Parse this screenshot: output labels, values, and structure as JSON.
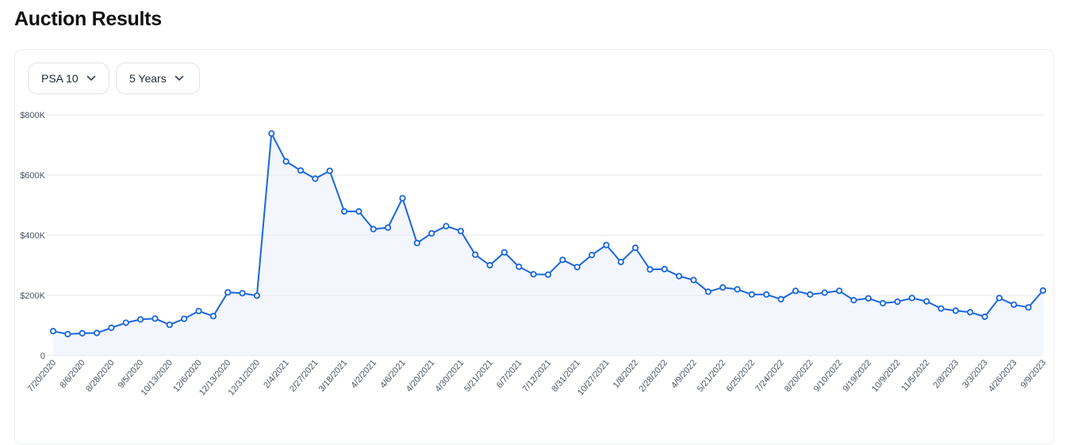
{
  "page": {
    "title": "Auction Results"
  },
  "filters": {
    "grade": {
      "label": "PSA 10",
      "icon": "chevron-down-icon"
    },
    "period": {
      "label": "5 Years",
      "icon": "chevron-down-icon"
    }
  },
  "colors": {
    "line": "#1a66e0",
    "area": "#e9effc",
    "grid": "#e5e7eb",
    "tick": "#4b5563"
  },
  "chart_data": {
    "type": "line",
    "title": "",
    "xlabel": "",
    "ylabel": "",
    "ylim": [
      0,
      800000
    ],
    "y_ticks": [
      0,
      200000,
      400000,
      600000,
      800000
    ],
    "y_tick_labels": [
      "0",
      "$200K",
      "$400K",
      "$600K",
      "$800K"
    ],
    "x_tick_labels": [
      "7/20/2020",
      "8/6/2020",
      "8/28/2020",
      "9/5/2020",
      "10/13/2020",
      "12/6/2020",
      "12/13/2020",
      "12/31/2020",
      "2/4/2021",
      "2/27/2021",
      "3/18/2021",
      "4/2/2021",
      "4/6/2021",
      "4/20/2021",
      "4/30/2021",
      "5/21/2021",
      "6/7/2021",
      "7/12/2021",
      "8/31/2021",
      "10/27/2021",
      "1/8/2022",
      "2/28/2022",
      "4/9/2022",
      "5/21/2022",
      "6/25/2022",
      "7/24/2022",
      "8/20/2022",
      "9/10/2022",
      "9/19/2022",
      "10/9/2022",
      "11/5/2022",
      "2/8/2023",
      "3/3/2023",
      "4/26/2023",
      "9/9/2023"
    ],
    "grid": true,
    "legend": "none",
    "series": [
      {
        "values": [
          81000,
          71000,
          74000,
          75000,
          92000,
          109000,
          120000,
          123000,
          102000,
          122000,
          148000,
          131000,
          210000,
          207000,
          199000,
          738000,
          645000,
          615000,
          588000,
          614000,
          479000,
          479000,
          420000,
          425000,
          523000,
          374000,
          406000,
          430000,
          414000,
          335000,
          300000,
          343000,
          295000,
          270000,
          269000,
          318000,
          294000,
          334000,
          367000,
          311000,
          358000,
          286000,
          287000,
          264000,
          251000,
          212000,
          226000,
          220000,
          203000,
          203000,
          187000,
          215000,
          203000,
          209000,
          215000,
          184000,
          190000,
          174000,
          179000,
          191000,
          180000,
          156000,
          149000,
          144000,
          129000,
          191000,
          169000,
          160000,
          216000
        ]
      }
    ]
  }
}
